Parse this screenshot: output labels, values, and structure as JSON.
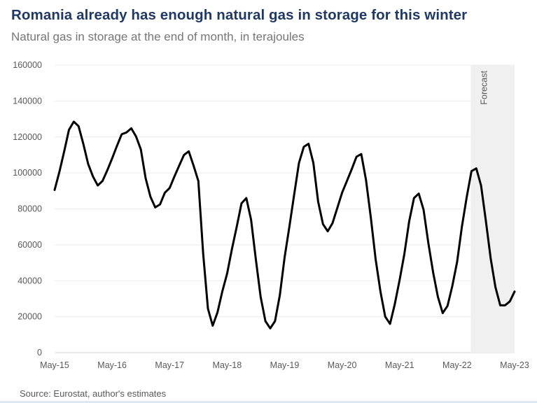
{
  "chart_data": {
    "type": "line",
    "title": "Romania already has enough natural gas in storage for this winter",
    "subtitle": "Natural gas in storage at the end of month, in terajoules",
    "source": "Source: Eurostat, author's estimates",
    "forecast_label": "Forecast",
    "forecast_range": [
      "2022-08",
      "2023-05"
    ],
    "ylim": [
      0,
      160000
    ],
    "y_ticks": [
      0,
      20000,
      40000,
      60000,
      80000,
      100000,
      120000,
      140000,
      160000
    ],
    "x_ticks": [
      "May-15",
      "May-16",
      "May-17",
      "May-18",
      "May-19",
      "May-20",
      "May-21",
      "May-22",
      "May-23"
    ],
    "grid": true,
    "line_color": "#000000",
    "forecast_shade_color": "#f0f0f0",
    "series": [
      {
        "x": [
          "2015-05",
          "2015-06",
          "2015-07",
          "2015-08",
          "2015-09",
          "2015-10",
          "2015-11",
          "2015-12",
          "2016-01",
          "2016-02",
          "2016-03",
          "2016-04",
          "2016-05",
          "2016-06",
          "2016-07",
          "2016-08",
          "2016-09",
          "2016-10",
          "2016-11",
          "2016-12",
          "2017-01",
          "2017-02",
          "2017-03",
          "2017-04",
          "2017-05",
          "2017-06",
          "2017-07",
          "2017-08",
          "2017-09",
          "2017-10",
          "2017-11",
          "2017-12",
          "2018-01",
          "2018-02",
          "2018-03",
          "2018-04",
          "2018-05",
          "2018-06",
          "2018-07",
          "2018-08",
          "2018-09",
          "2018-10",
          "2018-11",
          "2018-12",
          "2019-01",
          "2019-02",
          "2019-03",
          "2019-04",
          "2019-05",
          "2019-06",
          "2019-07",
          "2019-08",
          "2019-09",
          "2019-10",
          "2019-11",
          "2019-12",
          "2020-01",
          "2020-02",
          "2020-03",
          "2020-04",
          "2020-05",
          "2020-06",
          "2020-07",
          "2020-08",
          "2020-09",
          "2020-10",
          "2020-11",
          "2020-12",
          "2021-01",
          "2021-02",
          "2021-03",
          "2021-04",
          "2021-05",
          "2021-06",
          "2021-07",
          "2021-08",
          "2021-09",
          "2021-10",
          "2021-11",
          "2021-12",
          "2022-01",
          "2022-02",
          "2022-03",
          "2022-04",
          "2022-05",
          "2022-06",
          "2022-07",
          "2022-08",
          "2022-09",
          "2022-10",
          "2022-11",
          "2022-12",
          "2023-01",
          "2023-02",
          "2023-03",
          "2023-04",
          "2023-05"
        ],
        "values": [
          90500,
          100500,
          112000,
          124000,
          128500,
          126000,
          116000,
          105000,
          98000,
          93000,
          95500,
          101500,
          108000,
          115000,
          121500,
          122500,
          124800,
          120300,
          113000,
          97000,
          86700,
          80800,
          82500,
          88900,
          91600,
          98000,
          104000,
          110000,
          112000,
          104000,
          95500,
          55000,
          24500,
          15000,
          22500,
          34000,
          44000,
          57500,
          70000,
          83000,
          86000,
          74000,
          52000,
          31000,
          17500,
          13500,
          17500,
          32000,
          53000,
          70000,
          88000,
          105500,
          114500,
          116200,
          105500,
          84000,
          71500,
          67500,
          72000,
          80500,
          89000,
          95500,
          102000,
          109000,
          110500,
          96000,
          75000,
          52000,
          34000,
          20000,
          16000,
          27000,
          40500,
          55000,
          73000,
          86000,
          88500,
          79500,
          61000,
          44500,
          31000,
          22000,
          26000,
          37000,
          50500,
          70000,
          86500,
          101000,
          102500,
          93000,
          73500,
          52500,
          36500,
          26300,
          26300,
          28500,
          34000
        ]
      }
    ]
  }
}
